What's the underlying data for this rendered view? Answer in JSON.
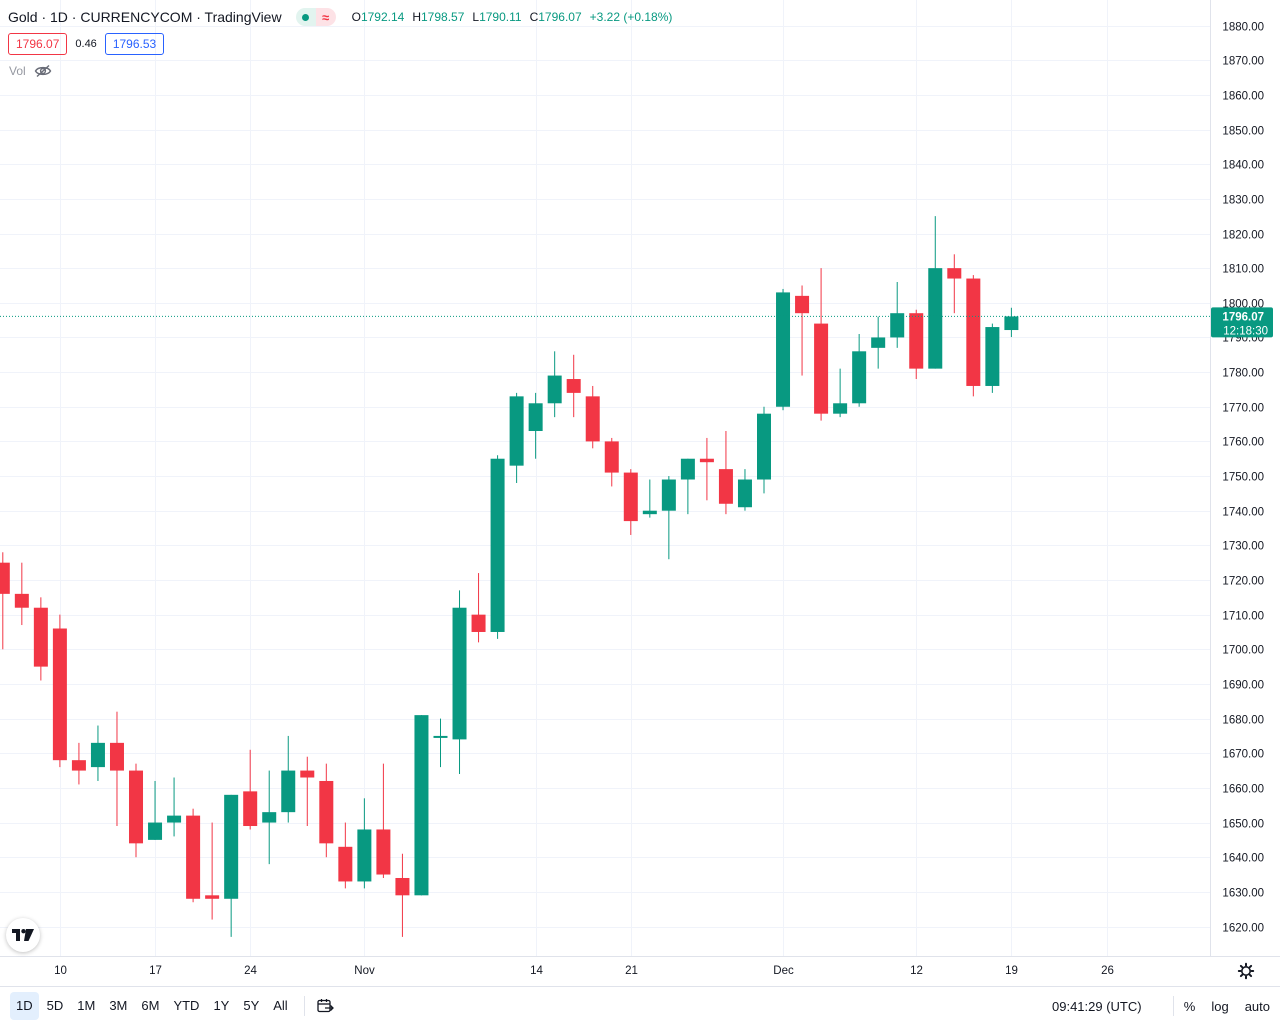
{
  "legend": {
    "title": "Gold · 1D · CURRENCYCOM · TradingView",
    "open": "1792.14",
    "high": "1798.57",
    "low": "1790.11",
    "close": "1796.07",
    "change": "+3.22 (+0.18%)",
    "o_key": "O",
    "h_key": "H",
    "l_key": "L",
    "c_key": "C"
  },
  "quote": {
    "bid": "1796.07",
    "spread": "0.46",
    "ask": "1796.53"
  },
  "volume": {
    "label": "Vol",
    "icon": "eye-crossed-icon"
  },
  "last_price": {
    "value": "1796.07",
    "countdown": "12:18:30"
  },
  "colors": {
    "up": "#089981",
    "down": "#f23645",
    "grid": "#f0f3fa",
    "ask": "#2962ff"
  },
  "toolbar": {
    "ranges": [
      "1D",
      "5D",
      "1M",
      "3M",
      "6M",
      "YTD",
      "1Y",
      "5Y",
      "All"
    ],
    "active_range": "1D",
    "clock": "09:41:29 (UTC)",
    "percent": "%",
    "log": "log",
    "auto": "auto",
    "goto_icon": "calendar-goto-icon",
    "settings_icon": "gear-icon",
    "logo_icon": "tradingview-logo-icon"
  },
  "chart_data": {
    "type": "candlestick",
    "ylim": [
      1612,
      1888
    ],
    "y_ticks": [
      1620,
      1630,
      1640,
      1650,
      1660,
      1670,
      1680,
      1690,
      1700,
      1710,
      1720,
      1730,
      1740,
      1750,
      1760,
      1770,
      1780,
      1790,
      1800,
      1810,
      1820,
      1830,
      1840,
      1850,
      1860,
      1870,
      1880
    ],
    "x_tick_labels": [
      {
        "label": "10",
        "bar": 3
      },
      {
        "label": "17",
        "bar": 8
      },
      {
        "label": "24",
        "bar": 13
      },
      {
        "label": "Nov",
        "bar": 19
      },
      {
        "label": "14",
        "bar": 28
      },
      {
        "label": "21",
        "bar": 33
      },
      {
        "label": "Dec",
        "bar": 41
      },
      {
        "label": "12",
        "bar": 48
      },
      {
        "label": "19",
        "bar": 53
      },
      {
        "label": "26",
        "bar": 58
      }
    ],
    "candles": [
      {
        "o": 1725,
        "h": 1728,
        "l": 1700,
        "c": 1716
      },
      {
        "o": 1716,
        "h": 1725,
        "l": 1707,
        "c": 1712
      },
      {
        "o": 1712,
        "h": 1715,
        "l": 1691,
        "c": 1695
      },
      {
        "o": 1706,
        "h": 1710,
        "l": 1666,
        "c": 1668
      },
      {
        "o": 1668,
        "h": 1673,
        "l": 1661,
        "c": 1665
      },
      {
        "o": 1666,
        "h": 1678,
        "l": 1662,
        "c": 1673
      },
      {
        "o": 1673,
        "h": 1682,
        "l": 1649,
        "c": 1665
      },
      {
        "o": 1665,
        "h": 1667,
        "l": 1640,
        "c": 1644
      },
      {
        "o": 1645,
        "h": 1662,
        "l": 1645,
        "c": 1650
      },
      {
        "o": 1650,
        "h": 1663,
        "l": 1646,
        "c": 1652
      },
      {
        "o": 1652,
        "h": 1654,
        "l": 1627,
        "c": 1628
      },
      {
        "o": 1629,
        "h": 1650,
        "l": 1622,
        "c": 1628
      },
      {
        "o": 1628,
        "h": 1658,
        "l": 1617,
        "c": 1658
      },
      {
        "o": 1659,
        "h": 1671,
        "l": 1648,
        "c": 1649
      },
      {
        "o": 1650,
        "h": 1665,
        "l": 1638,
        "c": 1653
      },
      {
        "o": 1653,
        "h": 1675,
        "l": 1650,
        "c": 1665
      },
      {
        "o": 1665,
        "h": 1669,
        "l": 1649,
        "c": 1663
      },
      {
        "o": 1662,
        "h": 1667,
        "l": 1640,
        "c": 1644
      },
      {
        "o": 1643,
        "h": 1650,
        "l": 1631,
        "c": 1633
      },
      {
        "o": 1633,
        "h": 1657,
        "l": 1631,
        "c": 1648
      },
      {
        "o": 1648,
        "h": 1667,
        "l": 1634,
        "c": 1635
      },
      {
        "o": 1634,
        "h": 1641,
        "l": 1617,
        "c": 1629
      },
      {
        "o": 1629,
        "h": 1681,
        "l": 1629,
        "c": 1681
      },
      {
        "o": 1675,
        "h": 1680,
        "l": 1666,
        "c": 1675
      },
      {
        "o": 1674,
        "h": 1717,
        "l": 1664,
        "c": 1712
      },
      {
        "o": 1710,
        "h": 1722,
        "l": 1702,
        "c": 1705
      },
      {
        "o": 1705,
        "h": 1756,
        "l": 1703,
        "c": 1755
      },
      {
        "o": 1753,
        "h": 1774,
        "l": 1748,
        "c": 1773
      },
      {
        "o": 1763,
        "h": 1774,
        "l": 1755,
        "c": 1771
      },
      {
        "o": 1771,
        "h": 1786,
        "l": 1767,
        "c": 1779
      },
      {
        "o": 1778,
        "h": 1785,
        "l": 1767,
        "c": 1774
      },
      {
        "o": 1773,
        "h": 1776,
        "l": 1758,
        "c": 1760
      },
      {
        "o": 1760,
        "h": 1761,
        "l": 1747,
        "c": 1751
      },
      {
        "o": 1751,
        "h": 1752,
        "l": 1733,
        "c": 1737
      },
      {
        "o": 1739,
        "h": 1749,
        "l": 1738,
        "c": 1740
      },
      {
        "o": 1740,
        "h": 1750,
        "l": 1726,
        "c": 1749
      },
      {
        "o": 1749,
        "h": 1755,
        "l": 1739,
        "c": 1755
      },
      {
        "o": 1755,
        "h": 1761,
        "l": 1743,
        "c": 1754
      },
      {
        "o": 1752,
        "h": 1763,
        "l": 1739,
        "c": 1742
      },
      {
        "o": 1741,
        "h": 1752,
        "l": 1740,
        "c": 1749
      },
      {
        "o": 1749,
        "h": 1770,
        "l": 1745,
        "c": 1768
      },
      {
        "o": 1770,
        "h": 1804,
        "l": 1769,
        "c": 1803
      },
      {
        "o": 1802,
        "h": 1805,
        "l": 1779,
        "c": 1797
      },
      {
        "o": 1794,
        "h": 1810,
        "l": 1766,
        "c": 1768
      },
      {
        "o": 1768,
        "h": 1781,
        "l": 1767,
        "c": 1771
      },
      {
        "o": 1771,
        "h": 1791,
        "l": 1770,
        "c": 1786
      },
      {
        "o": 1787,
        "h": 1796,
        "l": 1781,
        "c": 1790
      },
      {
        "o": 1790,
        "h": 1806,
        "l": 1787,
        "c": 1797
      },
      {
        "o": 1797,
        "h": 1798,
        "l": 1778,
        "c": 1781
      },
      {
        "o": 1781,
        "h": 1825,
        "l": 1781,
        "c": 1810
      },
      {
        "o": 1810,
        "h": 1814,
        "l": 1797,
        "c": 1807
      },
      {
        "o": 1807,
        "h": 1808,
        "l": 1773,
        "c": 1776
      },
      {
        "o": 1776,
        "h": 1794,
        "l": 1774,
        "c": 1793
      },
      {
        "o": 1792.14,
        "h": 1798.57,
        "l": 1790.11,
        "c": 1796.07
      }
    ],
    "last_value": 1796.07
  }
}
